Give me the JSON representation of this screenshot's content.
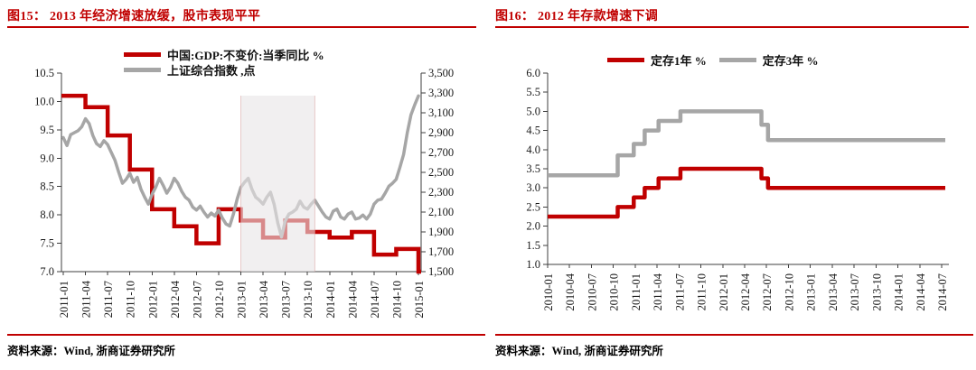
{
  "panels": [
    {
      "title": "图15： 2013 年经济增速放缓，股市表现平平",
      "source": "资料来源：Wind, 浙商证券研究所",
      "accent_color": "#c00000"
    },
    {
      "title": "图16： 2012 年存款增速下调",
      "source": "资料来源：Wind, 浙商证券研究所",
      "accent_color": "#c00000"
    }
  ],
  "chart_data": [
    {
      "type": "line",
      "title": "图15： 2013 年经济增速放缓，股市表现平平",
      "x_start": "2011-01",
      "x_ticks": [
        "2011-01",
        "2011-04",
        "2011-07",
        "2011-10",
        "2012-01",
        "2012-04",
        "2012-07",
        "2012-10",
        "2013-01",
        "2013-04",
        "2013-07",
        "2013-10",
        "2014-01",
        "2014-04",
        "2014-07",
        "2014-10",
        "2015-01"
      ],
      "left_axis": {
        "min": 7.0,
        "max": 10.5,
        "step": 0.5,
        "ticks": [
          "10.5",
          "10.0",
          "9.5",
          "9.0",
          "8.5",
          "8.0",
          "7.5",
          "7.0"
        ]
      },
      "right_axis": {
        "min": 1500,
        "max": 3500,
        "step": 200,
        "ticks": [
          "3,500",
          "3,300",
          "3,100",
          "2,900",
          "2,700",
          "2,500",
          "2,300",
          "2,100",
          "1,900",
          "1,700",
          "1,500"
        ]
      },
      "highlight_region": {
        "from": "2013-01",
        "to": "2013-11"
      },
      "legend_position": "top",
      "grid": false,
      "series": [
        {
          "name": "中国:GDP:不变价:当季同比 %",
          "color": "#c00000",
          "axis": "left",
          "style": "step",
          "x": [
            "2011-01",
            "2011-04",
            "2011-07",
            "2011-10",
            "2012-01",
            "2012-04",
            "2012-07",
            "2012-10",
            "2013-01",
            "2013-04",
            "2013-07",
            "2013-10",
            "2014-01",
            "2014-04",
            "2014-07",
            "2014-10",
            "2015-01"
          ],
          "values": [
            10.1,
            9.9,
            9.4,
            8.8,
            8.1,
            7.8,
            7.5,
            8.1,
            7.9,
            7.6,
            7.9,
            7.7,
            7.6,
            7.7,
            7.3,
            7.4,
            7.0
          ]
        },
        {
          "name": "上证综合指数 ,点",
          "color": "#a6a6a6",
          "axis": "right",
          "style": "line",
          "x_month_start": 0,
          "x_month_step": 0.5,
          "values": [
            2850,
            2770,
            2880,
            2900,
            2920,
            2960,
            3040,
            2990,
            2870,
            2790,
            2760,
            2820,
            2780,
            2700,
            2620,
            2500,
            2390,
            2430,
            2490,
            2400,
            2450,
            2330,
            2250,
            2180,
            2280,
            2350,
            2440,
            2370,
            2290,
            2350,
            2440,
            2390,
            2310,
            2250,
            2220,
            2150,
            2120,
            2160,
            2100,
            2050,
            2090,
            2060,
            2120,
            2040,
            1980,
            1960,
            2080,
            2230,
            2350,
            2400,
            2440,
            2330,
            2250,
            2220,
            2180,
            2250,
            2300,
            2180,
            1990,
            1850,
            2010,
            2080,
            2100,
            2130,
            2210,
            2150,
            2130,
            2180,
            2220,
            2160,
            2100,
            2050,
            2030,
            2110,
            2130,
            2050,
            2030,
            2080,
            2100,
            2030,
            2040,
            2070,
            2030,
            2080,
            2180,
            2220,
            2230,
            2290,
            2360,
            2390,
            2430,
            2550,
            2680,
            2900,
            3080,
            3180,
            3270
          ]
        }
      ]
    },
    {
      "type": "line",
      "title": "图16： 2012 年存款增速下调",
      "x_start": "2010-01",
      "x_ticks": [
        "2010-01",
        "2010-04",
        "2010-07",
        "2010-10",
        "2011-01",
        "2011-04",
        "2011-07",
        "2011-10",
        "2012-01",
        "2012-04",
        "2012-07",
        "2012-10",
        "2013-01",
        "2013-04",
        "2013-07",
        "2013-10",
        "2014-01",
        "2014-04",
        "2014-07"
      ],
      "left_axis": {
        "min": 1.0,
        "max": 6.0,
        "step": 0.5,
        "ticks": [
          "6.0",
          "5.5",
          "5.0",
          "4.5",
          "4.0",
          "3.5",
          "3.0",
          "2.5",
          "2.0",
          "1.5",
          "1.0"
        ]
      },
      "legend_position": "top",
      "grid": false,
      "series": [
        {
          "name": "定存1年 %",
          "color": "#c00000",
          "axis": "left",
          "style": "step",
          "x_months": [
            0,
            9.6,
            11.8,
            13.3,
            15.2,
            18.2,
            29.3,
            30.2
          ],
          "values": [
            2.25,
            2.5,
            2.75,
            3.0,
            3.25,
            3.5,
            3.25,
            3.0
          ],
          "end_month": 54.6
        },
        {
          "name": "定存3年 %",
          "color": "#a6a6a6",
          "axis": "left",
          "style": "step",
          "x_months": [
            0,
            9.6,
            11.8,
            13.3,
            15.2,
            18.2,
            29.3,
            30.2
          ],
          "values": [
            3.33,
            3.85,
            4.15,
            4.5,
            4.75,
            5.0,
            4.65,
            4.25
          ],
          "end_month": 54.6
        }
      ]
    }
  ]
}
